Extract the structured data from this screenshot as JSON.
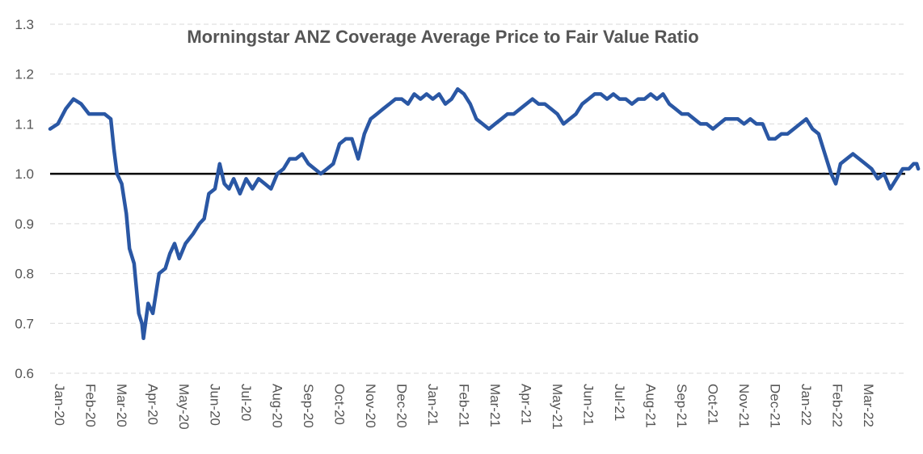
{
  "chart_data": {
    "type": "line",
    "title": "Morningstar ANZ Coverage Average Price to Fair Value Ratio",
    "xlabel": "",
    "ylabel": "",
    "ylim": [
      0.6,
      1.3
    ],
    "yticks": [
      "0.6",
      "0.7",
      "0.8",
      "0.9",
      "1.0",
      "1.1",
      "1.2",
      "1.3"
    ],
    "grid": true,
    "reference_line": 1.0,
    "categories": [
      "Jan-20",
      "Feb-20",
      "Mar-20",
      "Apr-20",
      "May-20",
      "Jun-20",
      "Jul-20",
      "Aug-20",
      "Sep-20",
      "Oct-20",
      "Nov-20",
      "Dec-20",
      "Jan-21",
      "Feb-21",
      "Mar-21",
      "Apr-21",
      "May-21",
      "Jun-21",
      "Jul-21",
      "Aug-21",
      "Sep-21",
      "Oct-21",
      "Nov-21",
      "Dec-21",
      "Jan-22",
      "Feb-22",
      "Mar-22"
    ],
    "series": [
      {
        "color": "#2a57a4",
        "points": [
          [
            0,
            1.09
          ],
          [
            0.25,
            1.1
          ],
          [
            0.5,
            1.13
          ],
          [
            0.75,
            1.15
          ],
          [
            1.0,
            1.14
          ],
          [
            1.25,
            1.12
          ],
          [
            1.5,
            1.12
          ],
          [
            1.75,
            1.12
          ],
          [
            1.95,
            1.11
          ],
          [
            2.05,
            1.05
          ],
          [
            2.15,
            1.0
          ],
          [
            2.3,
            0.98
          ],
          [
            2.45,
            0.92
          ],
          [
            2.55,
            0.85
          ],
          [
            2.7,
            0.82
          ],
          [
            2.85,
            0.72
          ],
          [
            2.95,
            0.7
          ],
          [
            3.0,
            0.67
          ],
          [
            3.15,
            0.74
          ],
          [
            3.3,
            0.72
          ],
          [
            3.5,
            0.8
          ],
          [
            3.7,
            0.81
          ],
          [
            3.85,
            0.84
          ],
          [
            4.0,
            0.86
          ],
          [
            4.15,
            0.83
          ],
          [
            4.35,
            0.86
          ],
          [
            4.6,
            0.88
          ],
          [
            4.8,
            0.9
          ],
          [
            4.95,
            0.91
          ],
          [
            5.1,
            0.96
          ],
          [
            5.3,
            0.97
          ],
          [
            5.45,
            1.02
          ],
          [
            5.6,
            0.98
          ],
          [
            5.75,
            0.97
          ],
          [
            5.9,
            0.99
          ],
          [
            6.1,
            0.96
          ],
          [
            6.3,
            0.99
          ],
          [
            6.5,
            0.97
          ],
          [
            6.7,
            0.99
          ],
          [
            6.9,
            0.98
          ],
          [
            7.1,
            0.97
          ],
          [
            7.3,
            1.0
          ],
          [
            7.5,
            1.01
          ],
          [
            7.7,
            1.03
          ],
          [
            7.9,
            1.03
          ],
          [
            8.1,
            1.04
          ],
          [
            8.3,
            1.02
          ],
          [
            8.5,
            1.01
          ],
          [
            8.7,
            1.0
          ],
          [
            8.9,
            1.01
          ],
          [
            9.1,
            1.02
          ],
          [
            9.3,
            1.06
          ],
          [
            9.5,
            1.07
          ],
          [
            9.7,
            1.07
          ],
          [
            9.9,
            1.03
          ],
          [
            10.1,
            1.08
          ],
          [
            10.3,
            1.11
          ],
          [
            10.5,
            1.12
          ],
          [
            10.7,
            1.13
          ],
          [
            10.9,
            1.14
          ],
          [
            11.1,
            1.15
          ],
          [
            11.3,
            1.15
          ],
          [
            11.5,
            1.14
          ],
          [
            11.7,
            1.16
          ],
          [
            11.9,
            1.15
          ],
          [
            12.1,
            1.16
          ],
          [
            12.3,
            1.15
          ],
          [
            12.5,
            1.16
          ],
          [
            12.7,
            1.14
          ],
          [
            12.9,
            1.15
          ],
          [
            13.1,
            1.17
          ],
          [
            13.3,
            1.16
          ],
          [
            13.5,
            1.14
          ],
          [
            13.7,
            1.11
          ],
          [
            13.9,
            1.1
          ],
          [
            14.1,
            1.09
          ],
          [
            14.3,
            1.1
          ],
          [
            14.5,
            1.11
          ],
          [
            14.7,
            1.12
          ],
          [
            14.9,
            1.12
          ],
          [
            15.1,
            1.13
          ],
          [
            15.3,
            1.14
          ],
          [
            15.5,
            1.15
          ],
          [
            15.7,
            1.14
          ],
          [
            15.9,
            1.14
          ],
          [
            16.1,
            1.13
          ],
          [
            16.3,
            1.12
          ],
          [
            16.5,
            1.1
          ],
          [
            16.7,
            1.11
          ],
          [
            16.9,
            1.12
          ],
          [
            17.1,
            1.14
          ],
          [
            17.3,
            1.15
          ],
          [
            17.5,
            1.16
          ],
          [
            17.7,
            1.16
          ],
          [
            17.9,
            1.15
          ],
          [
            18.1,
            1.16
          ],
          [
            18.3,
            1.15
          ],
          [
            18.5,
            1.15
          ],
          [
            18.7,
            1.14
          ],
          [
            18.9,
            1.15
          ],
          [
            19.1,
            1.15
          ],
          [
            19.3,
            1.16
          ],
          [
            19.5,
            1.15
          ],
          [
            19.7,
            1.16
          ],
          [
            19.9,
            1.14
          ],
          [
            20.1,
            1.13
          ],
          [
            20.3,
            1.12
          ],
          [
            20.5,
            1.12
          ],
          [
            20.7,
            1.11
          ],
          [
            20.9,
            1.1
          ],
          [
            21.1,
            1.1
          ],
          [
            21.3,
            1.09
          ],
          [
            21.5,
            1.1
          ],
          [
            21.7,
            1.11
          ],
          [
            21.9,
            1.11
          ],
          [
            22.1,
            1.11
          ],
          [
            22.3,
            1.1
          ],
          [
            22.5,
            1.11
          ],
          [
            22.7,
            1.1
          ],
          [
            22.9,
            1.1
          ],
          [
            23.1,
            1.07
          ],
          [
            23.3,
            1.07
          ],
          [
            23.5,
            1.08
          ],
          [
            23.7,
            1.08
          ],
          [
            23.9,
            1.09
          ],
          [
            24.1,
            1.1
          ],
          [
            24.3,
            1.11
          ],
          [
            24.5,
            1.09
          ],
          [
            24.7,
            1.08
          ],
          [
            24.9,
            1.04
          ],
          [
            25.1,
            1.0
          ],
          [
            25.25,
            0.98
          ],
          [
            25.4,
            1.02
          ],
          [
            25.6,
            1.03
          ],
          [
            25.8,
            1.04
          ],
          [
            26.0,
            1.03
          ],
          [
            26.2,
            1.02
          ],
          [
            26.4,
            1.01
          ],
          [
            26.6,
            0.99
          ],
          [
            26.8,
            1.0
          ],
          [
            27.0,
            0.97
          ],
          [
            27.2,
            0.99
          ],
          [
            27.4,
            1.01
          ],
          [
            27.6,
            1.01
          ],
          [
            27.75,
            1.02
          ],
          [
            27.85,
            1.02
          ],
          [
            27.9,
            1.01
          ]
        ]
      }
    ]
  }
}
